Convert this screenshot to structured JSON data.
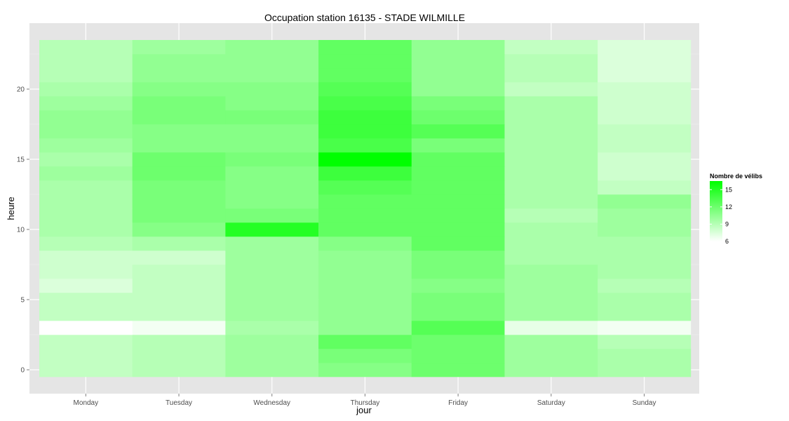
{
  "chart_data": {
    "type": "heatmap",
    "title": "Occupation station 16135 - STADE WILMILLE",
    "xlabel": "jour",
    "ylabel": "heure",
    "x_categories": [
      "Monday",
      "Tuesday",
      "Wednesday",
      "Thursday",
      "Friday",
      "Saturday",
      "Sunday"
    ],
    "y_values": [
      0,
      1,
      2,
      3,
      4,
      5,
      6,
      7,
      8,
      9,
      10,
      11,
      12,
      13,
      14,
      15,
      16,
      17,
      18,
      19,
      20,
      21,
      22,
      23
    ],
    "y_ticks": [
      0,
      5,
      10,
      15,
      20
    ],
    "ylim": [
      -0.5,
      23.5
    ],
    "grid": true,
    "legend": {
      "title": "Nombre de vélibs",
      "position": "right",
      "breaks": [
        6,
        9,
        12,
        15
      ],
      "range": [
        6,
        16.5
      ],
      "color_low": "#ffffff",
      "color_high": "#00ff00"
    },
    "values": [
      [
        8.5,
        9,
        10,
        11,
        12
      ],
      [
        8.5,
        9,
        10,
        11.5,
        12
      ],
      [
        8.5,
        9,
        10,
        12.5,
        12
      ],
      [
        6,
        6.5,
        9.5,
        10.5,
        13
      ],
      [
        8.5,
        8.5,
        10,
        10.5,
        11.5
      ],
      [
        8.5,
        8.5,
        10,
        10.5,
        11.5
      ],
      [
        7.5,
        8.5,
        10,
        10.5,
        11
      ],
      [
        8,
        8.5,
        10,
        10.5,
        11.5
      ],
      [
        8,
        8,
        10,
        10.5,
        11.5
      ],
      [
        9,
        9.5,
        10,
        11,
        12.5
      ],
      [
        9.5,
        11,
        15,
        12.5,
        12.5
      ],
      [
        9.5,
        11.5,
        11.5,
        12.5,
        12.5
      ],
      [
        9.5,
        11.5,
        11,
        12.5,
        12.5
      ],
      [
        9.5,
        11.5,
        11,
        13,
        12.5
      ],
      [
        10,
        12,
        11,
        14,
        12.5
      ],
      [
        9.5,
        12,
        11.5,
        16.5,
        12.5
      ],
      [
        10,
        11,
        11,
        13.5,
        11.5
      ],
      [
        10.5,
        11,
        11,
        14,
        13
      ],
      [
        10.5,
        11.5,
        11.5,
        14,
        12
      ],
      [
        10,
        11.5,
        11,
        13.5,
        11.5
      ],
      [
        9.5,
        11,
        11,
        13,
        10.5
      ],
      [
        9,
        10.5,
        10.5,
        12.5,
        10.5
      ],
      [
        9,
        10.5,
        10.5,
        12.5,
        10.5
      ],
      [
        9,
        10,
        10.5,
        12.5,
        10.5
      ]
    ],
    "values_weekend": [
      [
        10,
        9.5
      ],
      [
        10,
        9.5
      ],
      [
        10,
        9
      ],
      [
        7,
        6.5
      ],
      [
        10,
        9.5
      ],
      [
        10,
        9.5
      ],
      [
        10,
        9
      ],
      [
        10,
        9.5
      ],
      [
        9.5,
        9.5
      ],
      [
        9.5,
        9.5
      ],
      [
        9.5,
        10
      ],
      [
        9,
        10
      ],
      [
        9.5,
        10.5
      ],
      [
        9.5,
        8.5
      ],
      [
        9.5,
        8
      ],
      [
        9.5,
        8
      ],
      [
        9.5,
        8.5
      ],
      [
        9.5,
        8.5
      ],
      [
        9.5,
        8
      ],
      [
        9.5,
        8
      ],
      [
        8.5,
        8
      ],
      [
        9,
        7.5
      ],
      [
        9,
        7.5
      ],
      [
        8.5,
        7.5
      ]
    ]
  }
}
